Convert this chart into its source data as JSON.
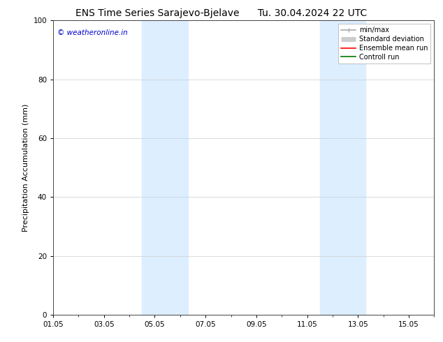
{
  "title_left": "ENS Time Series Sarajevo-Bjelave",
  "title_right": "Tu. 30.04.2024 22 UTC",
  "ylabel": "Precipitation Accumulation (mm)",
  "watermark": "© weatheronline.in",
  "watermark_color": "#0000cc",
  "ylim": [
    0,
    100
  ],
  "yticks": [
    0,
    20,
    40,
    60,
    80,
    100
  ],
  "xtick_labels": [
    "01.05",
    "03.05",
    "05.05",
    "07.05",
    "09.05",
    "11.05",
    "13.05",
    "15.05"
  ],
  "xtick_positions_days": [
    0,
    2,
    4,
    6,
    8,
    10,
    12,
    14
  ],
  "xlim": [
    0,
    15
  ],
  "shaded_bands": [
    {
      "x_start_day": 3.5,
      "x_end_day": 5.3
    },
    {
      "x_start_day": 10.5,
      "x_end_day": 12.3
    }
  ],
  "shade_color": "#ddeeff",
  "background_color": "#ffffff",
  "grid_color": "#cccccc",
  "legend_items": [
    {
      "label": "min/max",
      "color": "#aaaaaa",
      "lw": 1.2
    },
    {
      "label": "Standard deviation",
      "color": "#cccccc",
      "lw": 5
    },
    {
      "label": "Ensemble mean run",
      "color": "#ff0000",
      "lw": 1.2
    },
    {
      "label": "Controll run",
      "color": "#007700",
      "lw": 1.2
    }
  ],
  "title_fontsize": 10,
  "label_fontsize": 8,
  "tick_fontsize": 7.5,
  "legend_fontsize": 7,
  "watermark_fontsize": 7.5
}
